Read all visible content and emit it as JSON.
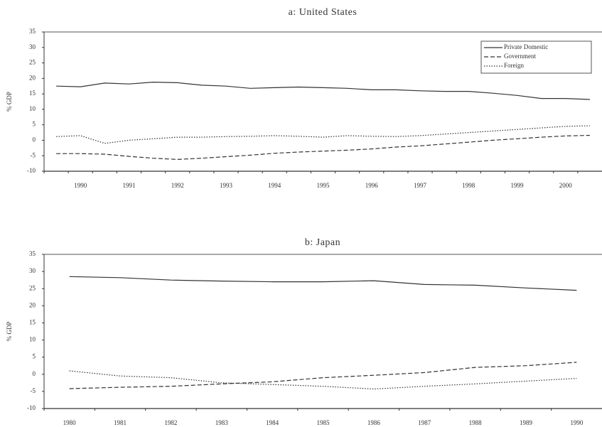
{
  "chart_data": [
    {
      "type": "line",
      "title": "a: United States",
      "y_label": "% GDP",
      "categories": [
        null,
        "1990",
        null,
        "1991",
        null,
        "1992",
        null,
        "1993",
        null,
        "1994",
        null,
        "1995",
        null,
        "1996",
        null,
        "1997",
        null,
        "1998",
        null,
        "1999",
        null,
        "2000",
        null
      ],
      "series": [
        {
          "name": "Private Domestic",
          "color": "#333333",
          "dash": "solid",
          "values": [
            17.5,
            17.3,
            18.5,
            18.2,
            18.8,
            18.6,
            17.8,
            17.5,
            16.8,
            17.0,
            17.2,
            17.0,
            16.8,
            16.3,
            16.3,
            16.0,
            15.8,
            15.8,
            15.2,
            14.5,
            13.5,
            13.5,
            13.2
          ]
        },
        {
          "name": "Government",
          "color": "#333333",
          "dash": "dashed",
          "values": [
            -4.3,
            -4.3,
            -4.5,
            -5.2,
            -5.8,
            -6.2,
            -5.8,
            -5.3,
            -4.8,
            -4.2,
            -3.8,
            -3.5,
            -3.2,
            -2.8,
            -2.2,
            -1.8,
            -1.2,
            -0.6,
            0,
            0.5,
            1,
            1.4,
            1.6
          ]
        },
        {
          "name": "Foreign",
          "color": "#333333",
          "dash": "dotted",
          "values": [
            1.2,
            1.5,
            -1,
            0,
            0.5,
            1,
            1,
            1.2,
            1.3,
            1.5,
            1.3,
            1,
            1.5,
            1.3,
            1.2,
            1.5,
            2,
            2.5,
            3,
            3.5,
            4,
            4.5,
            4.7
          ]
        }
      ],
      "ylim": [
        -10,
        35
      ],
      "yticks": [
        -10,
        -5,
        0,
        5,
        10,
        15,
        20,
        25,
        30,
        35
      ],
      "legend": "upper right"
    },
    {
      "type": "line",
      "title": "b: Japan",
      "y_label": "% GDP",
      "categories": [
        "1980",
        "1981",
        "1982",
        "1983",
        "1984",
        "1985",
        "1986",
        "1987",
        "1988",
        "1989",
        "1990"
      ],
      "series": [
        {
          "color": "#333333",
          "dash": "solid",
          "values": [
            28.5,
            28.2,
            27.5,
            27.2,
            27,
            27,
            27.3,
            26.2,
            26,
            25.2,
            24.5
          ]
        },
        {
          "color": "#333333",
          "dash": "dashed",
          "values": [
            -4.2,
            -3.8,
            -3.5,
            -2.8,
            -2.2,
            -1,
            -0.3,
            0.5,
            2,
            2.5,
            3.5
          ]
        },
        {
          "color": "#333333",
          "dash": "dotted",
          "values": [
            1,
            -0.5,
            -1,
            -2.5,
            -3,
            -3.5,
            -4.3,
            -3.5,
            -2.8,
            -2,
            -1.2
          ]
        }
      ],
      "ylim": [
        -10,
        35
      ],
      "yticks": [
        -10,
        -5,
        0,
        5,
        10,
        15,
        20,
        25,
        30,
        35
      ]
    }
  ]
}
